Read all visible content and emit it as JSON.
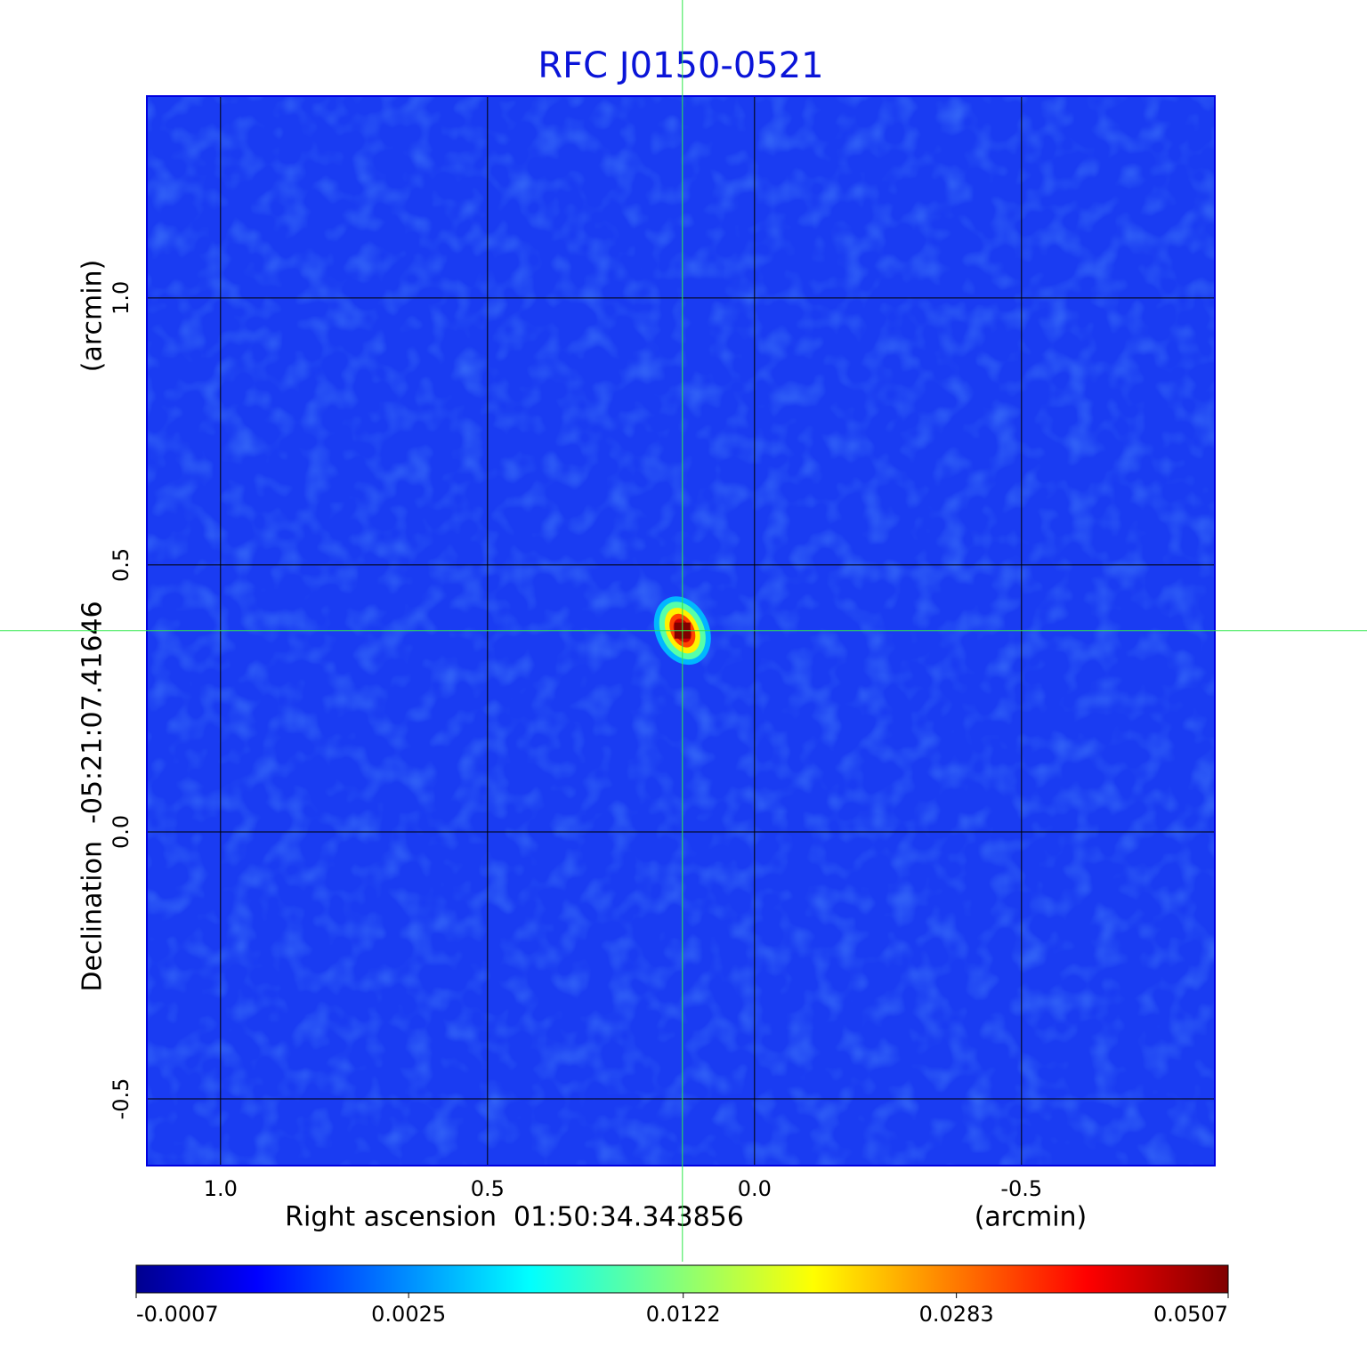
{
  "chart_data": {
    "type": "image",
    "title": "RFC J0150-0521",
    "xlabel": "Right ascension  01:50:34.343856",
    "xunit": "(arcmin)",
    "ylabel": "Declination  -05:21:07.41646",
    "yunit": "(arcmin)",
    "xlim": [
      1.138,
      -0.862
    ],
    "ylim": [
      -0.625,
      1.378
    ],
    "xticks": [
      {
        "value": 1,
        "label": "1.0"
      },
      0.5,
      {
        "value": 0,
        "label": "0.0"
      },
      -0.5
    ],
    "yticks": [
      -0.5,
      {
        "value": 0,
        "label": "0.0"
      },
      0.5,
      {
        "value": 1,
        "label": "1.0"
      }
    ],
    "grid": true,
    "source": {
      "x": 0.135,
      "y": 0.377,
      "peak": 0.0507
    },
    "colormap": "jet",
    "color_scale": "sqrt",
    "clim": [
      -0.0007,
      0.0507
    ],
    "cticks": [
      -0.0007,
      0.0025,
      0.0122,
      0.0283,
      0.0507
    ]
  }
}
